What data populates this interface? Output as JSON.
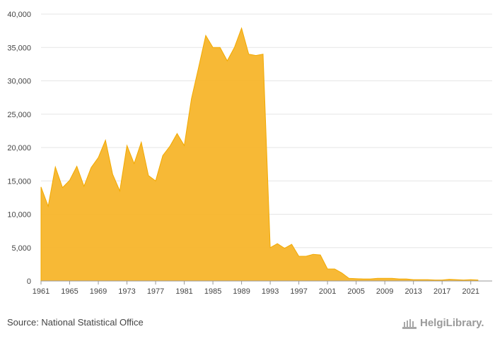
{
  "chart_data": {
    "type": "area",
    "color": "#f7b52b",
    "grid": true,
    "ylim": [
      0,
      40000
    ],
    "yticks": [
      "0",
      "5,000",
      "10,000",
      "15,000",
      "20,000",
      "25,000",
      "30,000",
      "35,000",
      "40,000"
    ],
    "xticks": [
      "1961",
      "1965",
      "1969",
      "1973",
      "1977",
      "1981",
      "1985",
      "1989",
      "1993",
      "1997",
      "2001",
      "2005",
      "2009",
      "2013",
      "2017",
      "2021"
    ],
    "x": [
      1961,
      1962,
      1963,
      1964,
      1965,
      1966,
      1967,
      1968,
      1969,
      1970,
      1971,
      1972,
      1973,
      1974,
      1975,
      1976,
      1977,
      1978,
      1979,
      1980,
      1981,
      1982,
      1983,
      1984,
      1985,
      1986,
      1987,
      1988,
      1989,
      1990,
      1991,
      1992,
      1993,
      1994,
      1995,
      1996,
      1997,
      1998,
      1999,
      2000,
      2001,
      2002,
      2003,
      2004,
      2005,
      2006,
      2007,
      2008,
      2009,
      2010,
      2011,
      2012,
      2013,
      2014,
      2015,
      2016,
      2017,
      2018,
      2019,
      2020,
      2021,
      2022
    ],
    "values": [
      14100,
      11200,
      17100,
      14000,
      15100,
      17200,
      14200,
      17000,
      18500,
      21100,
      16000,
      13500,
      20300,
      17600,
      20800,
      15800,
      15000,
      18800,
      20200,
      22100,
      20300,
      27300,
      32000,
      36800,
      35000,
      35000,
      33000,
      35000,
      37900,
      34000,
      33800,
      34000,
      5000,
      5600,
      4900,
      5500,
      3700,
      3700,
      4000,
      3900,
      1800,
      1800,
      1200,
      400,
      350,
      300,
      300,
      400,
      400,
      400,
      300,
      300,
      200,
      200,
      200,
      150,
      150,
      250,
      200,
      150,
      200,
      150
    ]
  },
  "footer": {
    "source": "Source: National Statistical Office",
    "logo": "HelgiLibrary."
  }
}
